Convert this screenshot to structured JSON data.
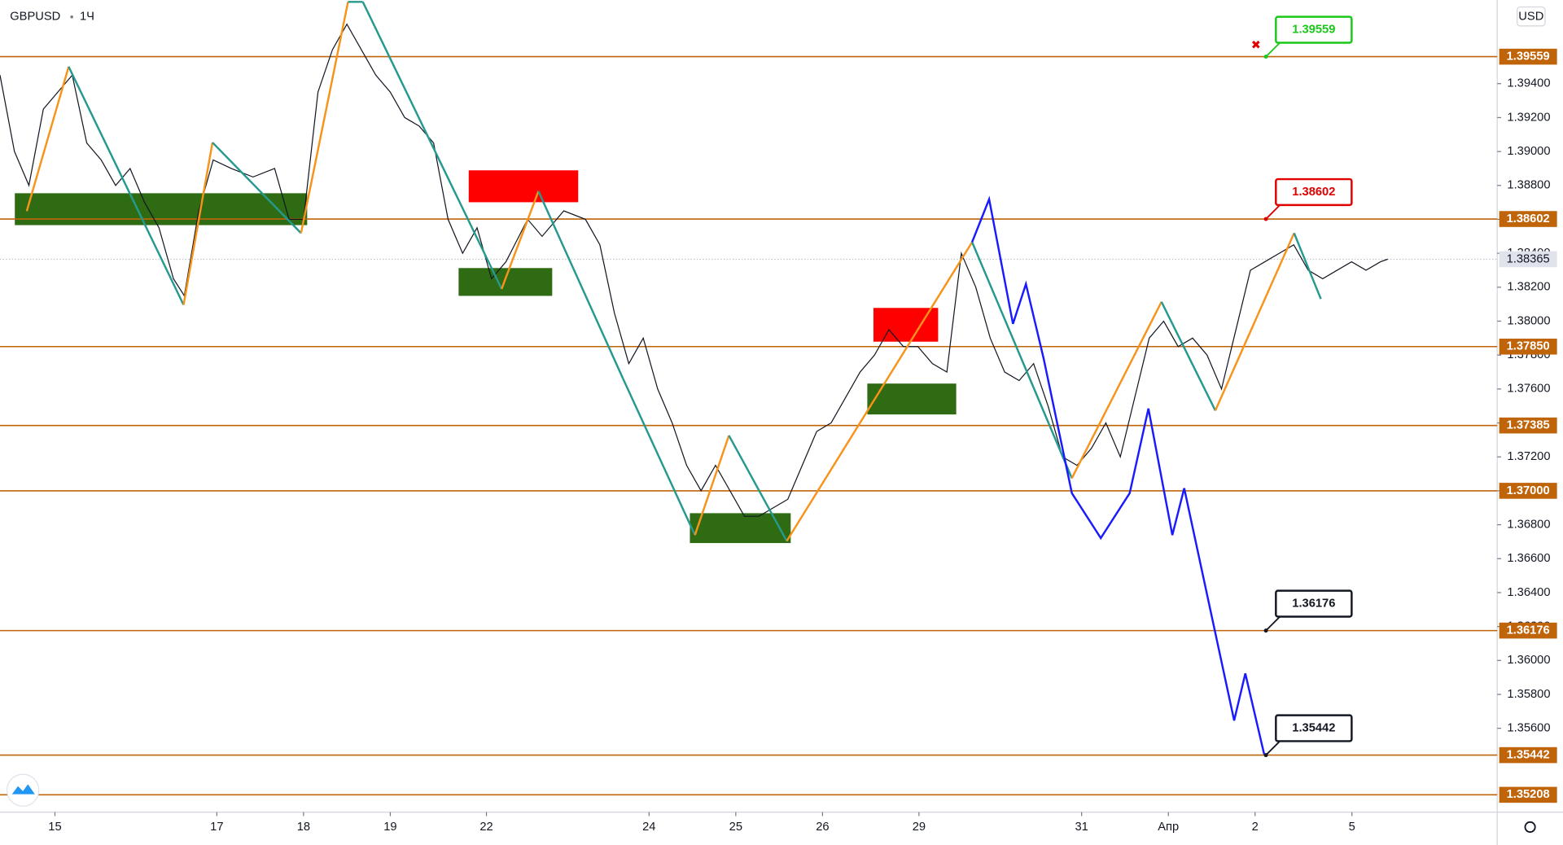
{
  "header": {
    "symbol": "GBPUSD",
    "interval": "1Ч",
    "currency": "USD"
  },
  "chart_data": {
    "type": "line",
    "xlim": [
      0,
      414.3
    ],
    "ylim": [
      1.35106,
      1.39893
    ],
    "xticks": [
      {
        "value": 15.2,
        "label": "15"
      },
      {
        "value": 60,
        "label": "17"
      },
      {
        "value": 84,
        "label": "18"
      },
      {
        "value": 108,
        "label": "19"
      },
      {
        "value": 134.6,
        "label": "22"
      },
      {
        "value": 179.6,
        "label": "24"
      },
      {
        "value": 203.6,
        "label": "25"
      },
      {
        "value": 227.6,
        "label": "26"
      },
      {
        "value": 254.3,
        "label": "29"
      },
      {
        "value": 299.3,
        "label": "31"
      },
      {
        "value": 323.3,
        "label": "Апр"
      },
      {
        "value": 347.3,
        "label": "2"
      },
      {
        "value": 374.1,
        "label": "5"
      }
    ],
    "yticks": [
      {
        "value": 1.394,
        "label": "1.39400"
      },
      {
        "value": 1.392,
        "label": "1.39200"
      },
      {
        "value": 1.39,
        "label": "1.39000"
      },
      {
        "value": 1.388,
        "label": "1.38800"
      },
      {
        "value": 1.386,
        "label": "1.38600"
      },
      {
        "value": 1.384,
        "label": "1.38400"
      },
      {
        "value": 1.382,
        "label": "1.38200"
      },
      {
        "value": 1.38,
        "label": "1.38000"
      },
      {
        "value": 1.378,
        "label": "1.37800"
      },
      {
        "value": 1.376,
        "label": "1.37600"
      },
      {
        "value": 1.374,
        "label": "1.37400"
      },
      {
        "value": 1.372,
        "label": "1.37200"
      },
      {
        "value": 1.37,
        "label": "1.37000"
      },
      {
        "value": 1.368,
        "label": "1.36800"
      },
      {
        "value": 1.366,
        "label": "1.36600"
      },
      {
        "value": 1.364,
        "label": "1.36400"
      },
      {
        "value": 1.362,
        "label": "1.36200"
      },
      {
        "value": 1.36,
        "label": "1.36000"
      },
      {
        "value": 1.358,
        "label": "1.35800"
      },
      {
        "value": 1.356,
        "label": "1.35600"
      }
    ],
    "price": {
      "color": "#131722",
      "x": [
        0,
        4,
        8,
        12,
        16,
        20,
        24,
        28,
        32,
        36,
        40,
        44,
        48,
        51,
        55,
        59,
        64,
        70,
        76,
        80,
        84,
        88,
        92,
        96,
        100,
        104,
        108,
        112,
        116,
        120,
        124,
        128,
        132,
        136,
        140,
        146,
        150,
        156,
        162,
        166,
        170,
        174,
        178,
        182,
        186,
        190,
        194,
        198,
        202,
        206,
        210,
        214,
        218,
        222,
        226,
        230,
        234,
        238,
        242,
        246,
        250,
        254,
        258,
        262,
        266,
        270,
        274,
        278,
        282,
        286,
        290,
        294,
        298,
        302,
        306,
        310,
        314,
        318,
        322,
        326,
        330,
        334,
        338,
        342,
        346,
        350,
        354,
        358,
        362,
        366,
        370,
        374,
        378,
        382,
        384
      ],
      "values": [
        1.3945,
        1.39,
        1.388,
        1.3925,
        1.3935,
        1.3945,
        1.3905,
        1.3895,
        1.388,
        1.389,
        1.387,
        1.3855,
        1.3825,
        1.3815,
        1.3865,
        1.3895,
        1.389,
        1.3885,
        1.389,
        1.386,
        1.386,
        1.3935,
        1.396,
        1.3975,
        1.396,
        1.3945,
        1.3935,
        1.392,
        1.3915,
        1.3905,
        1.386,
        1.384,
        1.3855,
        1.3825,
        1.3835,
        1.386,
        1.385,
        1.3865,
        1.386,
        1.3845,
        1.3805,
        1.3775,
        1.379,
        1.376,
        1.374,
        1.3715,
        1.37,
        1.3715,
        1.37,
        1.3685,
        1.3685,
        1.369,
        1.3695,
        1.3715,
        1.3735,
        1.374,
        1.3755,
        1.377,
        1.378,
        1.3795,
        1.3785,
        1.3785,
        1.3775,
        1.377,
        1.384,
        1.382,
        1.379,
        1.377,
        1.3765,
        1.3775,
        1.375,
        1.372,
        1.3715,
        1.3725,
        1.374,
        1.372,
        1.3755,
        1.379,
        1.38,
        1.3785,
        1.379,
        1.378,
        1.376,
        1.3795,
        1.383,
        1.3835,
        1.384,
        1.3845,
        1.383,
        1.3825,
        1.383,
        1.3835,
        1.383,
        1.3835,
        1.38365
      ]
    },
    "zones": [
      {
        "color": "#2e6b12",
        "x": [
          4.1,
          85.0
        ],
        "values": [
          1.38566,
          1.38754
        ]
      },
      {
        "color": "#ff0000",
        "x": [
          129.7,
          160.0
        ],
        "values": [
          1.38701,
          1.38889
        ]
      },
      {
        "color": "#2e6b12",
        "x": [
          126.9,
          152.8
        ],
        "values": [
          1.38149,
          1.38313
        ]
      },
      {
        "color": "#2e6b12",
        "x": [
          190.9,
          218.8
        ],
        "values": [
          1.36692,
          1.36868
        ]
      },
      {
        "color": "#ff0000",
        "x": [
          241.7,
          259.6
        ],
        "values": [
          1.37879,
          1.38078
        ]
      },
      {
        "color": "#2e6b12",
        "x": [
          240.0,
          264.6
        ],
        "values": [
          1.3745,
          1.37632
        ]
      }
    ],
    "zigzag": {
      "up_color": "#f7931a",
      "down_color": "#26998f",
      "x": [
        7.4,
        19.0,
        50.8,
        58.8,
        83.3,
        96.3,
        100.4,
        138.8,
        149.0,
        172.4,
        192.3,
        201.7,
        217.7,
        269.0,
        296.6,
        321.4,
        336.3,
        358.1,
        365.5
      ],
      "values": [
        1.38648,
        1.395,
        1.38096,
        1.39053,
        1.38519,
        1.39882,
        1.39882,
        1.3819,
        1.38766,
        1.37661,
        1.36739,
        1.37326,
        1.36704,
        1.38466,
        1.37074,
        1.38114,
        1.37473,
        1.38519,
        1.38131
      ]
    },
    "projection": {
      "color": "#1a1aff",
      "x": [
        269.0,
        273.7,
        280.3,
        283.9,
        288.8,
        296.6,
        304.6,
        312.6,
        317.8,
        324.4,
        327.7,
        341.5,
        344.6,
        349.8
      ],
      "values": [
        1.38466,
        1.38719,
        1.37984,
        1.38219,
        1.37779,
        1.36986,
        1.36721,
        1.36986,
        1.37485,
        1.36739,
        1.37015,
        1.35646,
        1.35923,
        1.35447
      ]
    },
    "levels": {
      "color": "#c0640a",
      "items": [
        {
          "value": 1.39559,
          "label": "1.39559"
        },
        {
          "value": 1.38602,
          "label": "1.38602"
        },
        {
          "value": 1.3785,
          "label": "1.37850"
        },
        {
          "value": 1.37385,
          "label": "1.37385"
        },
        {
          "value": 1.37,
          "label": "1.37000"
        },
        {
          "value": 1.36176,
          "label": "1.36176"
        },
        {
          "value": 1.35442,
          "label": "1.35442"
        },
        {
          "value": 1.35208,
          "label": "1.35208"
        }
      ]
    },
    "last_price": {
      "value": 1.38365,
      "label": "1.38365"
    },
    "callouts": [
      {
        "value": 1.39559,
        "label": "1.39559",
        "x": 350.3,
        "color": "#19c819"
      },
      {
        "value": 1.38602,
        "label": "1.38602",
        "x": 350.3,
        "color": "#e00000"
      },
      {
        "value": 1.36176,
        "label": "1.36176",
        "x": 350.3,
        "color": "#131722"
      },
      {
        "value": 1.35442,
        "label": "1.35442",
        "x": 350.3,
        "color": "#131722"
      }
    ]
  }
}
